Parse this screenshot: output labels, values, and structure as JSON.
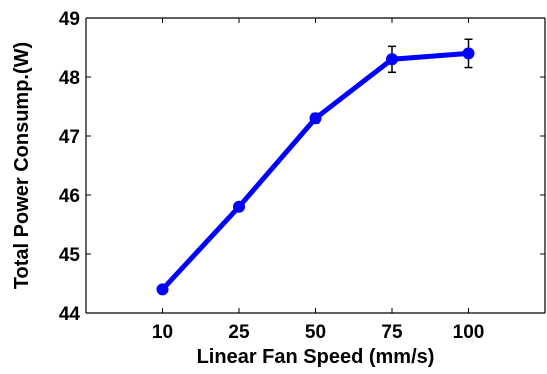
{
  "chart_data": {
    "type": "line",
    "title": "",
    "xlabel": "Linear Fan Speed (mm/s)",
    "ylabel": "Total Power Consump.(W)",
    "categories": [
      "10",
      "25",
      "50",
      "75",
      "100"
    ],
    "series": [
      {
        "name": "",
        "values": [
          44.4,
          45.8,
          47.3,
          48.3,
          48.4
        ],
        "errors": [
          0.02,
          0.03,
          0.08,
          0.22,
          0.24
        ],
        "color": "#0000ff"
      }
    ],
    "ylim": [
      44,
      49
    ],
    "yticks": [
      "44",
      "45",
      "46",
      "47",
      "48",
      "49"
    ],
    "grid": false,
    "legend": "none"
  }
}
